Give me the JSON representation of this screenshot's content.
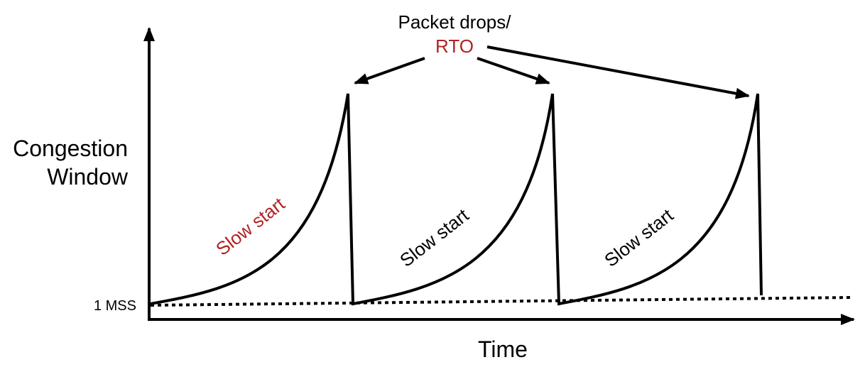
{
  "annotation": {
    "title": "Packet drops/",
    "label": "RTO"
  },
  "y_axis": {
    "label_lines": [
      "Congestion",
      "Window"
    ],
    "baseline_label": "1 MSS"
  },
  "x_axis": {
    "label": "Time"
  },
  "phases": [
    {
      "label": "Slow start"
    },
    {
      "label": "Slow start"
    },
    {
      "label": "Slow start"
    }
  ]
}
